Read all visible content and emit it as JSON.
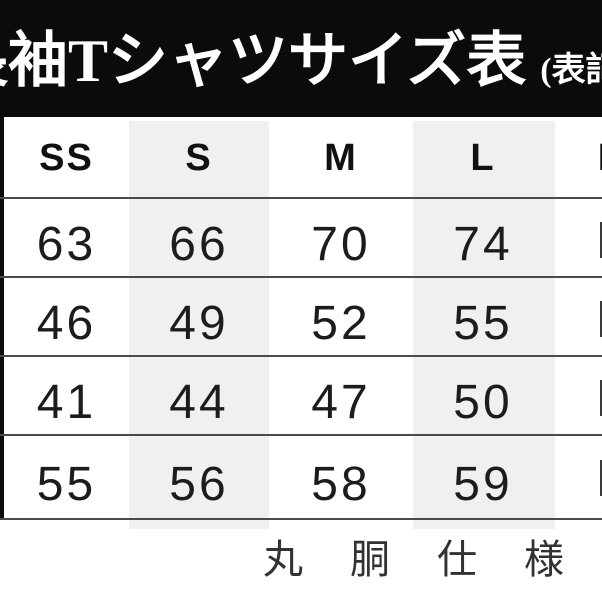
{
  "title": {
    "main": "長袖Tシャツサイズ表",
    "suffix": "(表記:cm)"
  },
  "size_chart": {
    "column_headers": [
      "SS",
      "S",
      "M",
      "L",
      "LL"
    ],
    "rows": [
      {
        "values": [
          "63",
          "66",
          "70",
          "74"
        ]
      },
      {
        "values": [
          "46",
          "49",
          "52",
          "55"
        ]
      },
      {
        "values": [
          "41",
          "44",
          "47",
          "50"
        ]
      },
      {
        "values": [
          "55",
          "56",
          "58",
          "59"
        ]
      }
    ]
  },
  "footer": {
    "note": "丸胴仕様"
  },
  "colors": {
    "title_bar_bg": "#0b0b0b",
    "title_text": "#ffffff",
    "column_stripe": "#f0f0f0",
    "rule_line": "#4b4b4b",
    "value_text": "#1c1c1c"
  },
  "chart_data": {
    "type": "table",
    "title": "長袖Tシャツサイズ表（表記:cm）",
    "columns": [
      "SS",
      "S",
      "M",
      "L"
    ],
    "rows": [
      [
        63,
        66,
        70,
        74
      ],
      [
        46,
        49,
        52,
        55
      ],
      [
        41,
        44,
        47,
        50
      ],
      [
        55,
        56,
        58,
        59
      ]
    ],
    "note": "丸胴仕様",
    "layout_hints": "leftmost row-label column and rightmost LL column cropped out of frame; S and L columns shaded light gray"
  }
}
